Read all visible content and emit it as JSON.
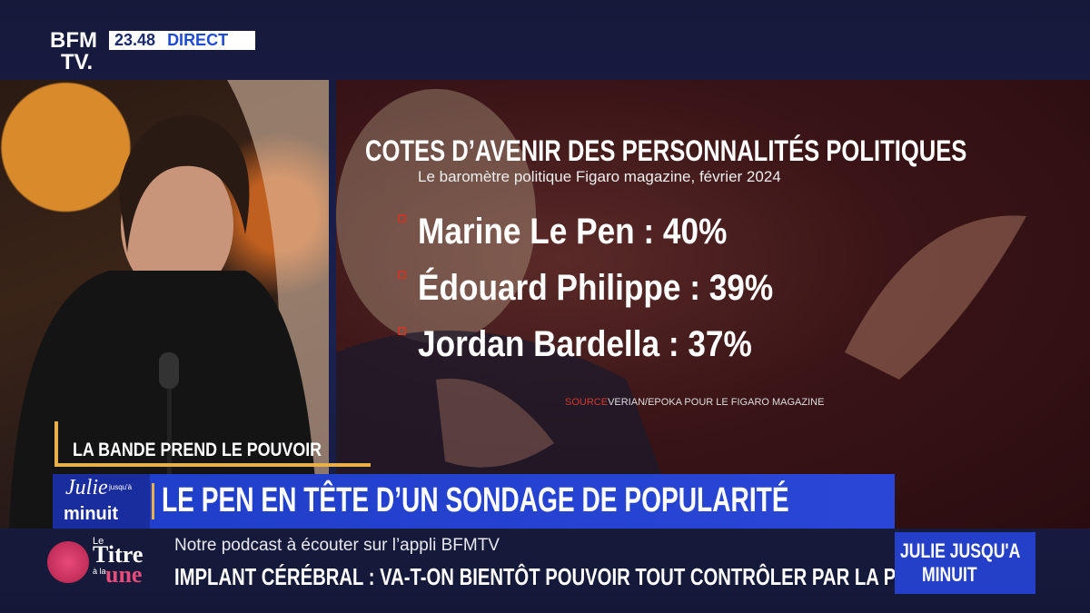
{
  "header": {
    "logo": [
      "BFM",
      "TV."
    ],
    "time": "23.48",
    "live": "DIRECT"
  },
  "graphic": {
    "title": "COTES D’AVENIR DES PERSONNALITÉS POLITIQUES",
    "subtitle": "Le baromètre politique Figaro magazine, février 2024",
    "items": [
      "Marine Le Pen : 40%",
      "Édouard Philippe : 39%",
      "Jordan Bardella : 37%"
    ],
    "source_label": "SOURCE",
    "source": "VERIAN/EPOKA POUR LE FIGARO MAGAZINE"
  },
  "lower_third": {
    "segment": "LA BANDE PREND LE POUVOIR",
    "show_logo": [
      "Julie",
      "jusqu'à",
      "minuit"
    ],
    "headline": "LE PEN EN TÊTE D’UN SONDAGE DE POPULARITÉ"
  },
  "ticker": {
    "logo": [
      "Le",
      "Titre",
      "à la",
      "une"
    ],
    "lines": [
      "Notre podcast à écouter sur l’appli BFMTV",
      "IMPLANT CÉRÉBRAL : VA-T-ON BIENTÔT POUVOIR TOUT CONTRÔLER PAR LA PENSÉE ?"
    ],
    "program": [
      "JULIE JUSQU'A",
      "MINUIT"
    ]
  }
}
